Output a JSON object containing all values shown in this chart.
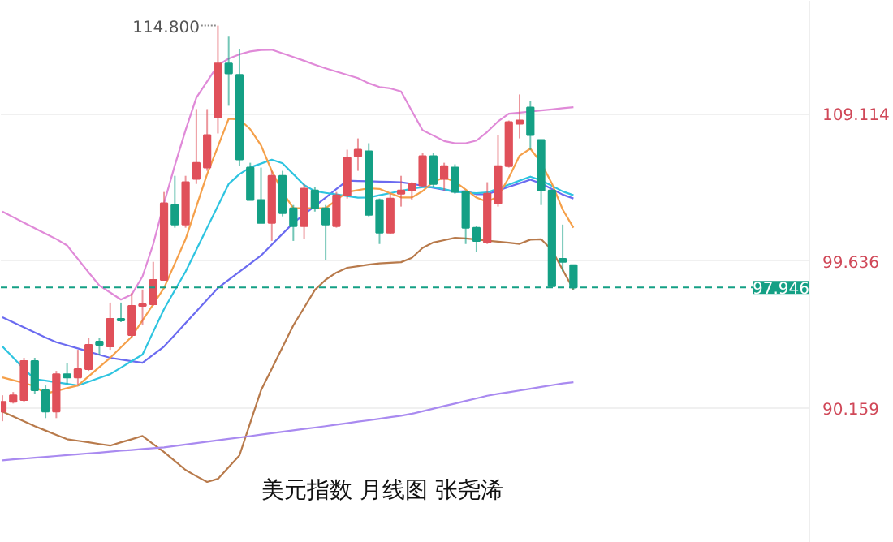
{
  "chart_data": {
    "type": "candlestick",
    "title": "美元指数 月线图 张尧浠",
    "categories": [
      null,
      null,
      null,
      null,
      null,
      null,
      null,
      null,
      null,
      null,
      null,
      null,
      null,
      null,
      null,
      null,
      null,
      null,
      null,
      null,
      null,
      null,
      null,
      null,
      null,
      null,
      null,
      null,
      null,
      null,
      null,
      null,
      null,
      null,
      null,
      null,
      null,
      null,
      null,
      null,
      null,
      null,
      null,
      null,
      null,
      null,
      null,
      null,
      null,
      null,
      null,
      null,
      null,
      null
    ],
    "ohlc": [
      [
        89.95,
        91.0,
        89.33,
        90.58
      ],
      [
        90.58,
        91.21,
        90.47,
        91.0
      ],
      [
        90.69,
        93.41,
        90.58,
        93.2
      ],
      [
        93.2,
        93.41,
        91.11,
        91.32
      ],
      [
        91.32,
        91.63,
        89.53,
        89.95
      ],
      [
        89.95,
        92.57,
        89.53,
        92.36
      ],
      [
        92.36,
        93.09,
        91.73,
        92.15
      ],
      [
        92.15,
        93.93,
        91.63,
        92.68
      ],
      [
        92.68,
        94.67,
        92.57,
        94.25
      ],
      [
        94.46,
        94.67,
        93.62,
        94.25
      ],
      [
        94.14,
        96.97,
        93.93,
        95.92
      ],
      [
        95.92,
        96.97,
        95.71,
        95.82
      ],
      [
        94.87,
        97.6,
        94.67,
        96.76
      ],
      [
        96.76,
        97.81,
        95.5,
        96.86
      ],
      [
        96.86,
        99.59,
        96.76,
        98.43
      ],
      [
        98.43,
        104.09,
        98.43,
        103.36
      ],
      [
        103.25,
        105.13,
        101.79,
        101.99
      ],
      [
        101.99,
        105.13,
        101.79,
        104.72
      ],
      [
        104.93,
        109.43,
        104.61,
        105.97
      ],
      [
        105.66,
        109.43,
        105.45,
        107.75
      ],
      [
        108.9,
        114.8,
        107.86,
        112.36
      ],
      [
        112.36,
        114.14,
        109.64,
        111.73
      ],
      [
        111.63,
        113.3,
        105.76,
        106.18
      ],
      [
        105.66,
        105.97,
        103.57,
        103.57
      ],
      [
        103.57,
        105.66,
        102.1,
        102.1
      ],
      [
        102.1,
        105.45,
        100.94,
        105.13
      ],
      [
        105.13,
        105.45,
        102.52,
        102.73
      ],
      [
        103.04,
        103.25,
        100.94,
        101.89
      ],
      [
        101.89,
        104.61,
        101.05,
        104.3
      ],
      [
        104.19,
        104.4,
        102.83,
        103.04
      ],
      [
        103.04,
        103.25,
        99.69,
        101.99
      ],
      [
        101.89,
        104.09,
        101.79,
        103.88
      ],
      [
        103.88,
        106.81,
        103.67,
        106.29
      ],
      [
        106.39,
        107.54,
        105.45,
        106.81
      ],
      [
        106.71,
        107.23,
        102.52,
        102.62
      ],
      [
        103.57,
        103.67,
        100.74,
        101.47
      ],
      [
        101.47,
        103.98,
        101.37,
        103.67
      ],
      [
        103.98,
        105.13,
        103.15,
        104.19
      ],
      [
        104.19,
        104.72,
        103.57,
        104.61
      ],
      [
        104.51,
        106.6,
        104.4,
        106.39
      ],
      [
        106.39,
        106.6,
        104.4,
        104.61
      ],
      [
        104.93,
        105.97,
        104.19,
        105.76
      ],
      [
        105.66,
        105.87,
        103.98,
        104.09
      ],
      [
        104.09,
        104.19,
        100.74,
        101.79
      ],
      [
        101.79,
        101.89,
        100.21,
        100.94
      ],
      [
        100.84,
        104.72,
        100.74,
        103.98
      ],
      [
        103.36,
        107.75,
        103.15,
        105.76
      ],
      [
        105.76,
        108.69,
        105.66,
        108.59
      ],
      [
        108.49,
        110.37,
        107.54,
        108.69
      ],
      [
        109.53,
        109.95,
        106.81,
        107.75
      ],
      [
        107.44,
        107.44,
        103.25,
        104.19
      ],
      [
        104.19,
        104.19,
        98.02,
        98.02
      ],
      [
        99.79,
        101.99,
        98.96,
        99.59
      ],
      [
        99.38,
        99.38,
        97.81,
        97.946
      ]
    ],
    "colors": [
      "#e0505a",
      "#e0505a",
      "#e0505a",
      "#14a085",
      "#14a085",
      "#e0505a",
      "#14a085",
      "#e0505a",
      "#e0505a",
      "#14a085",
      "#e0505a",
      "#14a085",
      "#e0505a",
      "#e0505a",
      "#e0505a",
      "#e0505a",
      "#14a085",
      "#e0505a",
      "#e0505a",
      "#e0505a",
      "#e0505a",
      "#14a085",
      "#14a085",
      "#14a085",
      "#14a085",
      "#e0505a",
      "#14a085",
      "#14a085",
      "#e0505a",
      "#14a085",
      "#14a085",
      "#e0505a",
      "#e0505a",
      "#e0505a",
      "#14a085",
      "#14a085",
      "#e0505a",
      "#e0505a",
      "#e0505a",
      "#e0505a",
      "#14a085",
      "#e0505a",
      "#14a085",
      "#14a085",
      "#14a085",
      "#e0505a",
      "#e0505a",
      "#e0505a",
      "#e0505a",
      "#14a085",
      "#14a085",
      "#14a085",
      "#14a085",
      "#14a085"
    ],
    "series": [
      {
        "type": "line",
        "color": "#e08ad8",
        "values": [
          102.83,
          102.47,
          102.11,
          101.76,
          101.41,
          101.06,
          100.65,
          99.78,
          98.91,
          98.07,
          97.62,
          97.16,
          97.49,
          98.65,
          100.74,
          103.36,
          105.8,
          108.07,
          110.16,
          111.21,
          112.25,
          112.68,
          112.95,
          113.14,
          113.23,
          113.25,
          113.02,
          112.78,
          112.54,
          112.29,
          112.05,
          111.84,
          111.63,
          111.42,
          111.09,
          110.85,
          110.76,
          110.56,
          109.31,
          108.07,
          107.72,
          107.37,
          107.23,
          107.23,
          107.4,
          107.96,
          108.63,
          109.13,
          109.2,
          109.27,
          109.34,
          109.41,
          109.48,
          109.55
        ]
      },
      {
        "type": "line",
        "color": "#b87a4b",
        "values": [
          89.95,
          89.64,
          89.32,
          89.01,
          88.73,
          88.45,
          88.17,
          88.07,
          87.97,
          87.86,
          87.76,
          87.97,
          88.17,
          88.38,
          87.86,
          87.34,
          86.77,
          86.19,
          85.79,
          85.42,
          85.62,
          86.37,
          87.13,
          89.23,
          91.32,
          92.71,
          94.11,
          95.5,
          96.64,
          97.78,
          98.44,
          98.9,
          99.21,
          99.31,
          99.41,
          99.49,
          99.53,
          99.57,
          99.85,
          100.49,
          100.84,
          100.99,
          101.14,
          101.1,
          101.03,
          100.95,
          100.89,
          100.82,
          100.75,
          101.02,
          101.05,
          100.35,
          99.08,
          97.81
        ]
      },
      {
        "type": "line",
        "color": "#6b6bf0",
        "values": [
          96.03,
          95.7,
          95.37,
          95.04,
          94.72,
          94.42,
          94.22,
          94.02,
          93.81,
          93.61,
          93.41,
          93.3,
          93.2,
          93.09,
          93.62,
          94.14,
          94.89,
          95.65,
          96.4,
          97.16,
          97.91,
          98.43,
          98.96,
          99.48,
          100.0,
          100.7,
          101.4,
          102.1,
          102.64,
          103.19,
          103.73,
          104.28,
          104.82,
          104.8,
          104.78,
          104.76,
          104.74,
          104.72,
          104.62,
          104.49,
          104.36,
          104.23,
          104.1,
          104.14,
          103.94,
          103.95,
          104.18,
          104.42,
          104.65,
          104.88,
          104.64,
          104.28,
          103.92,
          103.67
        ]
      },
      {
        "type": "line",
        "color": "#2ec4e0",
        "values": [
          94.14,
          93.42,
          92.7,
          92.04,
          91.94,
          91.84,
          91.73,
          91.63,
          91.87,
          92.12,
          92.36,
          92.78,
          93.2,
          93.62,
          95.09,
          96.55,
          97.76,
          98.96,
          100.37,
          101.79,
          103.2,
          104.61,
          105.24,
          105.67,
          105.92,
          106.17,
          105.94,
          105.24,
          104.54,
          104.14,
          104.03,
          103.93,
          103.83,
          103.72,
          103.74,
          103.88,
          104.02,
          104.16,
          104.3,
          104.4,
          104.4,
          104.27,
          104.11,
          104.05,
          104.01,
          104.06,
          104.31,
          104.57,
          104.82,
          105.08,
          104.84,
          104.49,
          104.13,
          103.88
        ]
      },
      {
        "type": "line",
        "color": "#f5a04a",
        "values": [
          92.15,
          91.97,
          91.79,
          91.58,
          91.11,
          91.28,
          91.46,
          91.63,
          92.22,
          92.82,
          93.41,
          94.09,
          94.77,
          95.82,
          96.86,
          97.91,
          99.48,
          101.05,
          103.15,
          105.24,
          107.02,
          108.8,
          108.77,
          108.13,
          107.09,
          105.44,
          104.09,
          103.04,
          103.04,
          103.04,
          103.04,
          103.57,
          104.09,
          104.21,
          104.33,
          104.29,
          104.01,
          103.74,
          103.74,
          104.15,
          104.75,
          105.02,
          104.75,
          104.25,
          103.73,
          103.46,
          103.81,
          105.01,
          106.43,
          106.88,
          105.97,
          104.63,
          102.96,
          101.79
        ]
      },
      {
        "type": "line",
        "color": "#a98af0",
        "values": [
          86.81,
          86.87,
          86.92,
          86.98,
          87.03,
          87.09,
          87.15,
          87.2,
          87.26,
          87.31,
          87.37,
          87.43,
          87.48,
          87.54,
          87.59,
          87.65,
          87.74,
          87.83,
          87.92,
          88.01,
          88.1,
          88.19,
          88.28,
          88.37,
          88.47,
          88.56,
          88.65,
          88.74,
          88.83,
          88.92,
          89.01,
          89.11,
          89.2,
          89.3,
          89.39,
          89.49,
          89.59,
          89.68,
          89.81,
          89.97,
          90.14,
          90.31,
          90.47,
          90.64,
          90.8,
          90.97,
          91.09,
          91.2,
          91.31,
          91.42,
          91.54,
          91.65,
          91.76,
          91.84
        ]
      }
    ],
    "ylim": [
      81.5,
      116.4
    ],
    "yticks": [
      {
        "value": 90.159,
        "label": "90.159"
      },
      {
        "value": 99.636,
        "label": "99.636"
      },
      {
        "value": 109.114,
        "label": "109.114"
      }
    ],
    "tick_labels": "y",
    "grid": "y",
    "ref_lines": [
      {
        "axis": "y",
        "value": 97.946,
        "label": "97.946",
        "color": "#14a085",
        "line_style": "dashed"
      }
    ],
    "annotations": [
      "114.800"
    ]
  }
}
